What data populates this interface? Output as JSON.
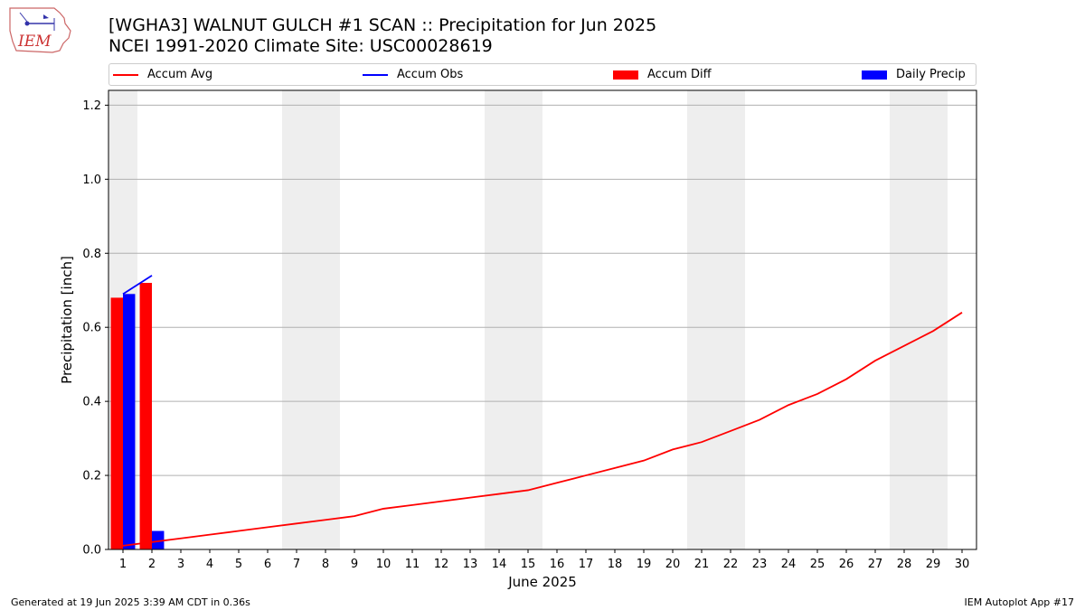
{
  "title": "[WGHA3] WALNUT GULCH #1 SCAN :: Precipitation for Jun 2025",
  "subtitle": "NCEI 1991-2020 Climate Site: USC00028619",
  "logo_text": "IEM",
  "footer_left": "Generated at 19 Jun 2025 3:39 AM CDT in 0.36s",
  "footer_right": "IEM Autoplot App #17",
  "colors": {
    "accum_avg": "#ff0000",
    "accum_obs": "#0000ff",
    "accum_diff": "#ff0000",
    "daily_precip": "#0000ff",
    "weekend": "#eeeeee",
    "grid": "#b0b0b0"
  },
  "chart_data": {
    "type": "bar",
    "xlabel": "June 2025",
    "ylabel": "Precipitation [inch]",
    "ylim": [
      0,
      1.24
    ],
    "xlim": [
      0.5,
      30.5
    ],
    "yticks": [
      "0.0",
      "0.2",
      "0.4",
      "0.6",
      "0.8",
      "1.0",
      "1.2"
    ],
    "xticks": [
      "1",
      "2",
      "3",
      "4",
      "5",
      "6",
      "7",
      "8",
      "9",
      "10",
      "11",
      "12",
      "13",
      "14",
      "15",
      "16",
      "17",
      "18",
      "19",
      "20",
      "21",
      "22",
      "23",
      "24",
      "25",
      "26",
      "27",
      "28",
      "29",
      "30"
    ],
    "grid": "horizontal",
    "legend_position": "top",
    "weekend_days": [
      1,
      7,
      8,
      14,
      15,
      21,
      22,
      28,
      29
    ],
    "series": [
      {
        "name": "Accum Avg",
        "kind": "line",
        "x": [
          1,
          2,
          3,
          4,
          5,
          6,
          7,
          8,
          9,
          10,
          11,
          12,
          13,
          14,
          15,
          16,
          17,
          18,
          19,
          20,
          21,
          22,
          23,
          24,
          25,
          26,
          27,
          28,
          29,
          30
        ],
        "values": [
          0.01,
          0.02,
          0.03,
          0.04,
          0.05,
          0.06,
          0.07,
          0.08,
          0.09,
          0.11,
          0.12,
          0.13,
          0.14,
          0.15,
          0.16,
          0.18,
          0.2,
          0.22,
          0.24,
          0.27,
          0.29,
          0.32,
          0.35,
          0.39,
          0.42,
          0.46,
          0.51,
          0.55,
          0.59,
          0.64
        ]
      },
      {
        "name": "Accum Obs",
        "kind": "line",
        "x": [
          1,
          2
        ],
        "values": [
          0.69,
          0.74
        ]
      },
      {
        "name": "Accum Diff",
        "kind": "bar",
        "x": [
          1,
          2
        ],
        "values": [
          0.68,
          0.72
        ]
      },
      {
        "name": "Daily Precip",
        "kind": "bar",
        "x": [
          1,
          2
        ],
        "values": [
          0.69,
          0.05
        ]
      }
    ]
  }
}
